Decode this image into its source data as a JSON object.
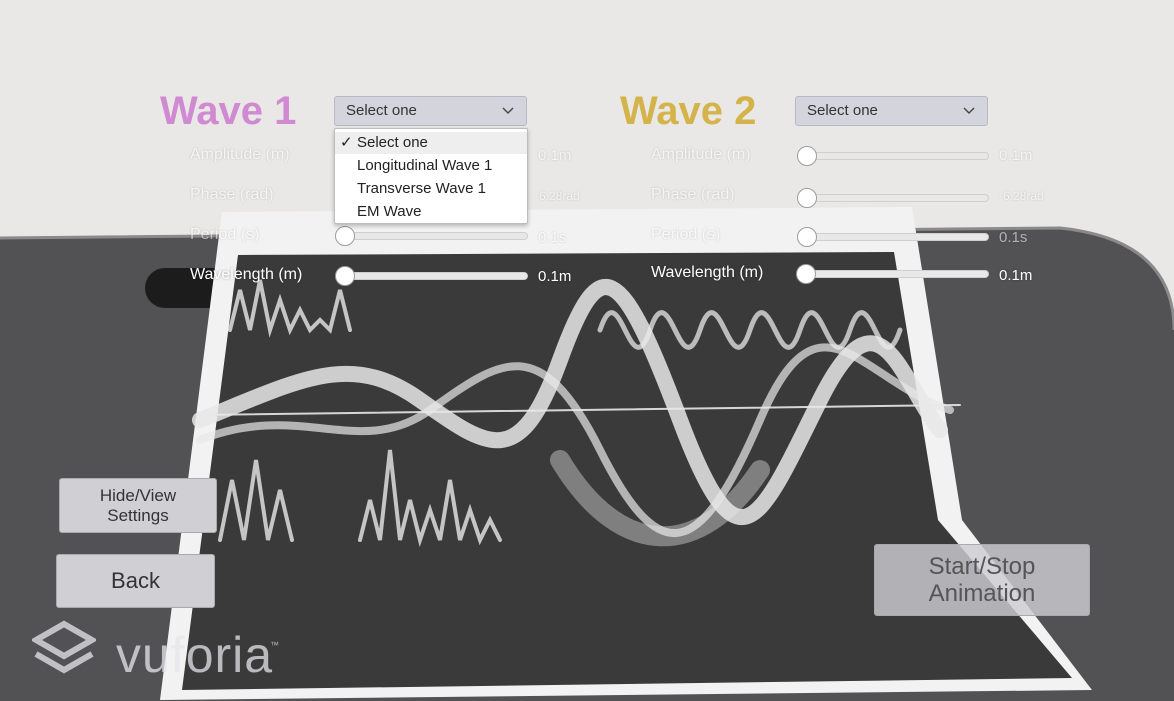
{
  "colors": {
    "wave1_title": "#d08ad2",
    "wave2_title": "#d4b44a"
  },
  "wave1": {
    "title": "Wave 1",
    "dropdown": {
      "selected": "Select one",
      "options": [
        "Select one",
        "Longitudinal Wave 1",
        "Transverse Wave 1",
        "EM Wave"
      ],
      "checkmark": "✓"
    },
    "sliders": [
      {
        "label": "Amplitude (m)",
        "value_text": "0.1m"
      },
      {
        "label": "Phase (rad)",
        "value_text": "-6.28rad"
      },
      {
        "label": "Period (s)",
        "value_text": "0.1s"
      },
      {
        "label": "Wavelength (m)",
        "value_text": "0.1m"
      }
    ]
  },
  "wave2": {
    "title": "Wave 2",
    "dropdown": {
      "selected": "Select one"
    },
    "sliders": [
      {
        "label": "Amplitude (m)",
        "value_text": "0.1m"
      },
      {
        "label": "Phase (rad)",
        "value_text": "-6.28rad"
      },
      {
        "label": "Period (s)",
        "value_text": "0.1s"
      },
      {
        "label": "Wavelength (m)",
        "value_text": "0.1m"
      }
    ]
  },
  "buttons": {
    "hide_view_line1": "Hide/View",
    "hide_view_line2": "Settings",
    "back": "Back",
    "start_stop_line1": "Start/Stop",
    "start_stop_line2": "Animation"
  },
  "watermark": {
    "text": "vuforia",
    "tm": "™"
  }
}
